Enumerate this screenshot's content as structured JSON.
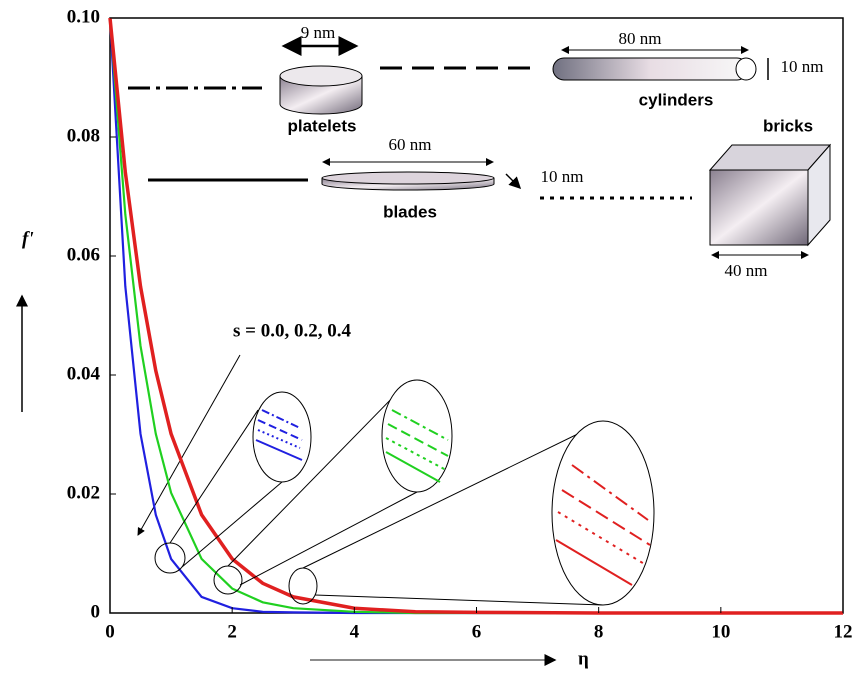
{
  "chart_data": {
    "type": "line",
    "xlabel": "η",
    "ylabel": "f'",
    "xlim": [
      0,
      12
    ],
    "xticks": [
      0,
      2,
      4,
      6,
      8,
      10,
      12
    ],
    "ylim": [
      0,
      0.1
    ],
    "yticks": [
      0,
      0.02,
      0.04,
      0.06,
      0.08,
      {
        "value": 0.1,
        "label": "0.10"
      }
    ],
    "x": [
      0,
      0.25,
      0.5,
      0.75,
      1,
      1.5,
      2,
      2.5,
      3,
      4,
      5,
      6,
      8,
      10,
      12
    ],
    "series": [
      {
        "color": "#2020e0",
        "values": [
          0.1,
          0.0549,
          0.0301,
          0.0165,
          0.0091,
          0.0027,
          0.0008,
          0.0002,
          0.0001,
          0,
          0,
          0,
          0,
          0,
          0
        ]
      },
      {
        "color": "#20d020",
        "values": [
          0.1,
          0.067,
          0.0449,
          0.0301,
          0.0202,
          0.0091,
          0.0041,
          0.0018,
          0.0008,
          0.0002,
          0,
          0,
          0,
          0,
          0
        ]
      },
      {
        "color": "#e02020",
        "values": [
          0.1,
          0.0741,
          0.0549,
          0.0407,
          0.0301,
          0.0165,
          0.0091,
          0.005,
          0.0027,
          0.0008,
          0.0002,
          0.0001,
          0,
          0,
          0
        ]
      }
    ],
    "annotations": [
      "9 nm",
      "80 nm",
      "10 nm",
      "platelets",
      "cylinders",
      "bricks",
      "60 nm",
      "10 nm",
      "blades",
      "40 nm",
      "s = 0.0, 0.2, 0.4"
    ]
  }
}
